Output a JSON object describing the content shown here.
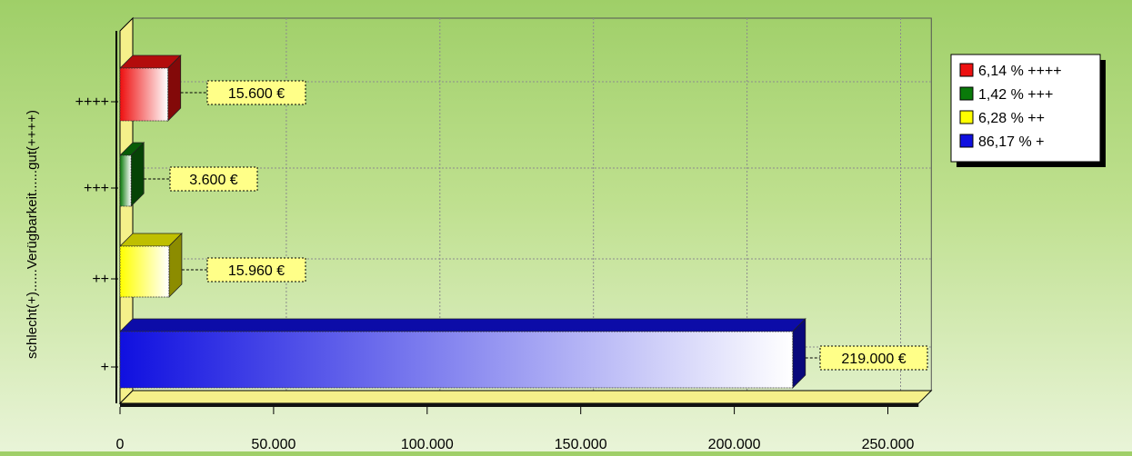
{
  "chart_data": {
    "type": "bar",
    "orientation": "horizontal",
    "style": "3d",
    "ylabel": "schlecht(+)......Verügbarkeit......gut(++++)",
    "xlabel": "",
    "xlim": [
      0,
      260000
    ],
    "xticks": [
      0,
      50000,
      100000,
      150000,
      200000,
      250000
    ],
    "xtick_labels": [
      "0",
      "50.000",
      "100.000",
      "150.000",
      "200.000",
      "250.000"
    ],
    "grid": true,
    "legend_position": "top-right",
    "categories": [
      "+",
      "++",
      "+++",
      "++++"
    ],
    "values": [
      219000,
      15960,
      3600,
      15600
    ],
    "value_labels": [
      "219.000 €",
      "15.960 €",
      "3.600 €",
      "15.600 €"
    ],
    "colors": [
      "#1010e0",
      "#ffff00",
      "#0a7a0a",
      "#ee1010"
    ],
    "legend": [
      {
        "label": "6,14 % ++++",
        "color": "#ee1010"
      },
      {
        "label": "1,42 % +++",
        "color": "#0a7a0a"
      },
      {
        "label": "6,28 % ++",
        "color": "#ffff00"
      },
      {
        "label": "86,17 % +",
        "color": "#1010e0"
      }
    ]
  }
}
